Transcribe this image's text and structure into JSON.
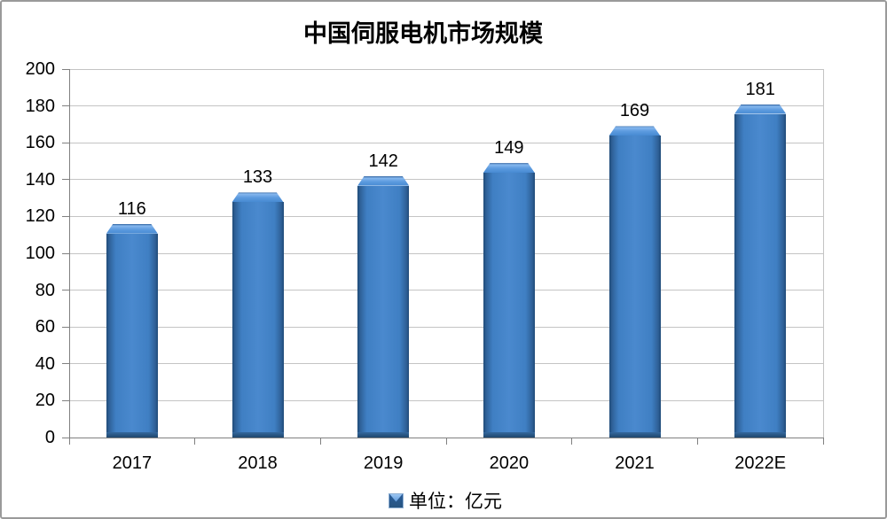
{
  "chart_data": {
    "type": "bar",
    "title": "中国伺服电机市场规模",
    "categories": [
      "2017",
      "2018",
      "2019",
      "2020",
      "2021",
      "2022E"
    ],
    "values": [
      116,
      133,
      142,
      149,
      169,
      181
    ],
    "unit_label": "单位：亿元",
    "xlabel": "",
    "ylabel": "",
    "ylim": [
      0,
      200
    ],
    "ytick_step": 20,
    "grid": true,
    "data_labels": true,
    "legend_position": "bottom"
  },
  "colors": {
    "bar_fill": "#3F7FC3",
    "bar_edge": "#1F4A78",
    "bar_highlight": "#86B7EE",
    "bar_base": "#27547F",
    "gridline": "#C4C4C4",
    "axis": "#808080",
    "outer_border": "#9A9A9A",
    "text": "#000000",
    "background": "#FFFFFF"
  }
}
